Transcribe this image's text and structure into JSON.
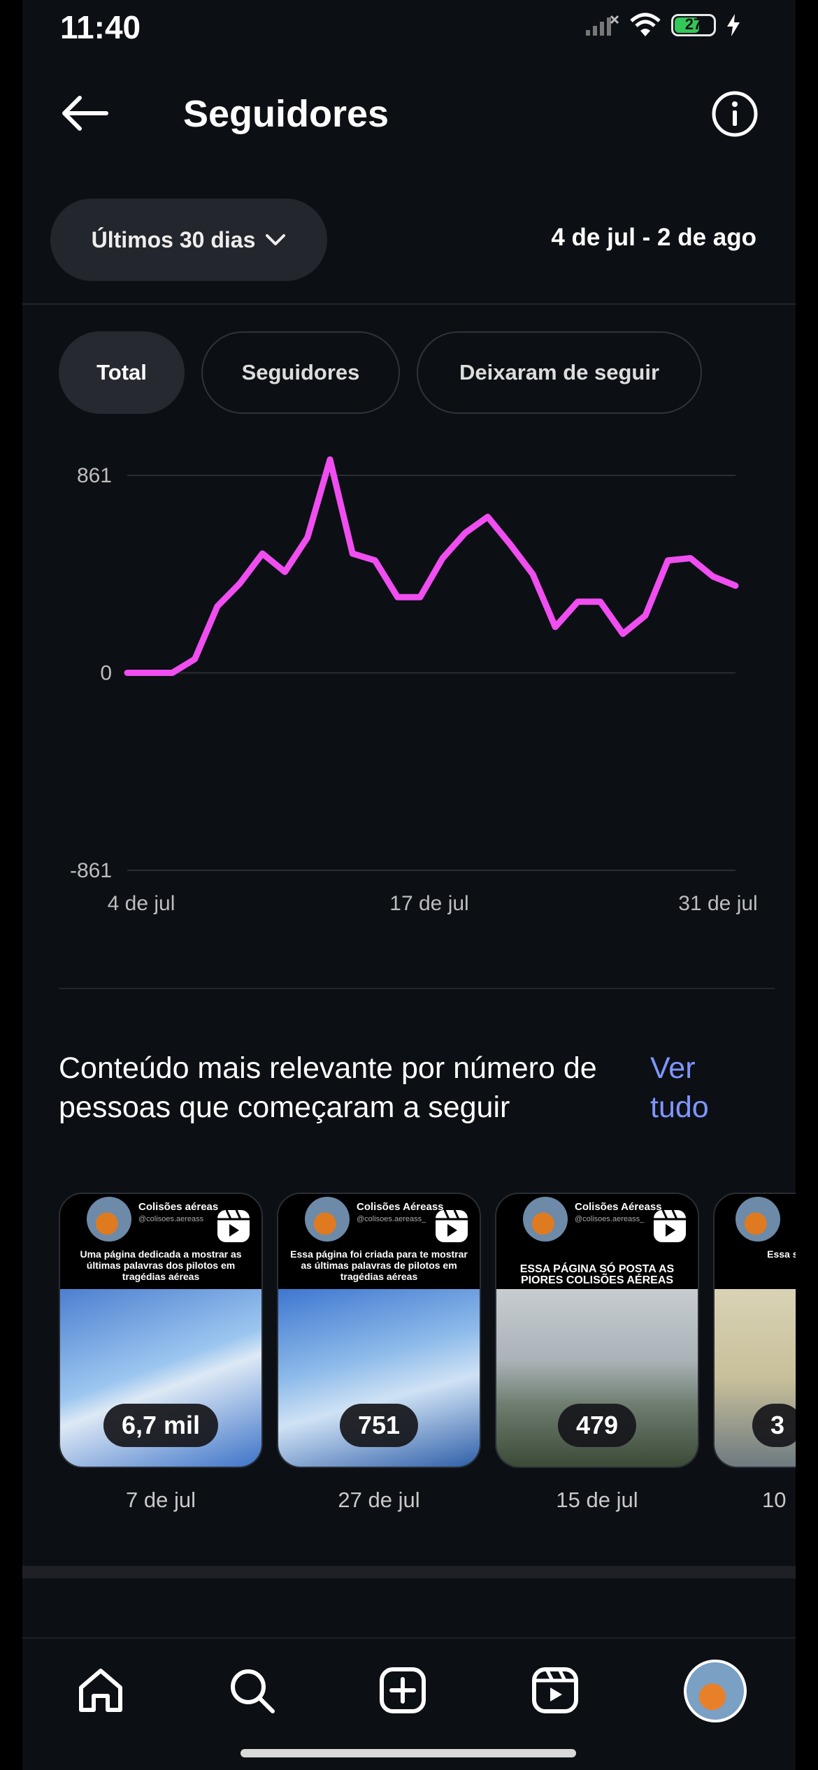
{
  "status_bar": {
    "time": "11:40",
    "battery": "27"
  },
  "header": {
    "title": "Seguidores"
  },
  "range": {
    "label": "Últimos 30 dias",
    "dates": "4 de jul - 2 de ago"
  },
  "filters": [
    {
      "label": "Total",
      "active": true
    },
    {
      "label": "Seguidores",
      "active": false
    },
    {
      "label": "Deixaram de seguir",
      "active": false
    }
  ],
  "chart_data": {
    "type": "line",
    "title": "",
    "series": [
      {
        "color": "#f04ef0",
        "values": [
          0,
          0,
          0,
          60,
          290,
          390,
          520,
          440,
          590,
          930,
          520,
          490,
          330,
          330,
          500,
          610,
          680,
          560,
          430,
          200,
          310,
          310,
          170,
          250,
          490,
          500,
          420,
          380
        ]
      }
    ],
    "x_ticks": [
      "4 de jul",
      "17 de jul",
      "31 de jul"
    ],
    "y_ticks": [
      "861",
      "0",
      "-861"
    ],
    "ylim": [
      -861,
      861
    ],
    "grid": true
  },
  "section": {
    "title": "Conteúdo mais relevante por número de pessoas que começaram a seguir",
    "see_all": "Ver tudo"
  },
  "posts": [
    {
      "account": "Colisões aéreas",
      "handle": "@colisoes.aereass",
      "caption": "Uma página dedicada a mostrar as últimas palavras dos pilotos em tragédias aéreas",
      "count": "6,7 mil",
      "date": "7 de jul"
    },
    {
      "account": "Colisões Aéreass",
      "handle": "@colisoes.aereass_",
      "caption": "Essa página foi criada para te mostrar as últimas palavras de pilotos em tragédias aéreas",
      "count": "751",
      "date": "27 de jul"
    },
    {
      "account": "Colisões Aéreass",
      "handle": "@colisoes.aereass_",
      "caption": "ESSA PÁGINA SÓ POSTA AS PIORES COLISÕES AÉREAS",
      "count": "479",
      "date": "15 de jul"
    },
    {
      "account": "",
      "handle": "",
      "caption": "Essa são as piores c",
      "count": "3",
      "date": "10"
    }
  ]
}
